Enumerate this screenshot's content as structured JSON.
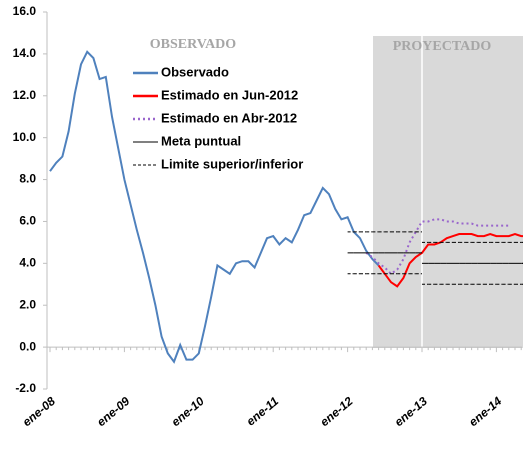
{
  "chart_data": {
    "type": "line",
    "annotations": [
      "OBSERVADO",
      "PROYECTADO"
    ],
    "categories": [
      "ene-08",
      null,
      null,
      null,
      null,
      null,
      null,
      null,
      null,
      null,
      null,
      null,
      "ene-09",
      null,
      null,
      null,
      null,
      null,
      null,
      null,
      null,
      null,
      null,
      null,
      "ene-10",
      null,
      null,
      null,
      null,
      null,
      null,
      null,
      null,
      null,
      null,
      null,
      "ene-11",
      null,
      null,
      null,
      null,
      null,
      null,
      null,
      null,
      null,
      null,
      null,
      "ene-12",
      null,
      null,
      null,
      null,
      null,
      null,
      null,
      null,
      null,
      null,
      null,
      "ene-13",
      null,
      null,
      null,
      null,
      null,
      null,
      null,
      null,
      null,
      null,
      null,
      "ene-14",
      null,
      null,
      null,
      null,
      null
    ],
    "ylim": [
      -2,
      16
    ],
    "yticks": [
      {
        "value": -2,
        "label": "-2.0"
      },
      {
        "value": 0,
        "label": "0.0"
      },
      {
        "value": 2,
        "label": "2.0"
      },
      {
        "value": 4,
        "label": "4.0"
      },
      {
        "value": 6,
        "label": "6.0"
      },
      {
        "value": 8,
        "label": "8.0"
      },
      {
        "value": 10,
        "label": "10.0"
      },
      {
        "value": 12,
        "label": "12.0"
      },
      {
        "value": 14,
        "label": "14.0"
      },
      {
        "value": 16,
        "label": "16.0"
      }
    ],
    "series": [
      {
        "name": "Observado",
        "color": "#4f81bd",
        "style": "solid",
        "values": [
          8.4,
          8.8,
          9.1,
          10.3,
          12.1,
          13.5,
          14.1,
          13.8,
          12.8,
          12.9,
          11.0,
          9.5,
          8.0,
          6.8,
          5.6,
          4.5,
          3.3,
          2.0,
          0.5,
          -0.3,
          -0.7,
          0.1,
          -0.6,
          -0.6,
          -0.3,
          1.0,
          2.4,
          3.9,
          3.7,
          3.5,
          4.0,
          4.1,
          4.1,
          3.8,
          4.5,
          5.2,
          5.3,
          4.9,
          5.2,
          5.0,
          5.6,
          6.3,
          6.4,
          7.0,
          7.6,
          7.3,
          6.6,
          6.1,
          6.2,
          5.5,
          5.2,
          4.6,
          4.2,
          3.9,
          null,
          null,
          null,
          null,
          null,
          null,
          null,
          null,
          null,
          null,
          null,
          null,
          null,
          null,
          null,
          null,
          null,
          null,
          null,
          null,
          null,
          null,
          null,
          null
        ]
      },
      {
        "name": "Estimado en Jun-2012",
        "color": "#ff0000",
        "style": "solid",
        "values": [
          null,
          null,
          null,
          null,
          null,
          null,
          null,
          null,
          null,
          null,
          null,
          null,
          null,
          null,
          null,
          null,
          null,
          null,
          null,
          null,
          null,
          null,
          null,
          null,
          null,
          null,
          null,
          null,
          null,
          null,
          null,
          null,
          null,
          null,
          null,
          null,
          null,
          null,
          null,
          null,
          null,
          null,
          null,
          null,
          null,
          null,
          null,
          null,
          null,
          null,
          null,
          null,
          null,
          3.9,
          3.5,
          3.1,
          2.9,
          3.3,
          4.0,
          4.3,
          4.5,
          4.9,
          4.9,
          5.0,
          5.2,
          5.3,
          5.4,
          5.4,
          5.4,
          5.3,
          5.3,
          5.4,
          5.3,
          5.3,
          5.3,
          5.4,
          5.3,
          5.3
        ]
      },
      {
        "name": "Estimado en Abr-2012",
        "color": "#9966cc",
        "style": "dotted",
        "values": [
          null,
          null,
          null,
          null,
          null,
          null,
          null,
          null,
          null,
          null,
          null,
          null,
          null,
          null,
          null,
          null,
          null,
          null,
          null,
          null,
          null,
          null,
          null,
          null,
          null,
          null,
          null,
          null,
          null,
          null,
          null,
          null,
          null,
          null,
          null,
          null,
          null,
          null,
          null,
          null,
          null,
          null,
          null,
          null,
          null,
          null,
          null,
          null,
          null,
          null,
          null,
          4.5,
          4.3,
          4.0,
          3.8,
          3.5,
          3.7,
          4.2,
          5.0,
          5.5,
          6.0,
          6.0,
          6.1,
          6.1,
          6.0,
          6.0,
          5.9,
          5.9,
          5.9,
          5.8,
          5.8,
          5.8,
          5.8,
          5.8,
          5.8,
          null,
          null,
          null
        ]
      },
      {
        "name": "Meta puntual",
        "color": "#000000",
        "style": "step",
        "values": [
          null,
          null,
          null,
          null,
          null,
          null,
          null,
          null,
          null,
          null,
          null,
          null,
          null,
          null,
          null,
          null,
          null,
          null,
          null,
          null,
          null,
          null,
          null,
          null,
          null,
          null,
          null,
          null,
          null,
          null,
          null,
          null,
          null,
          null,
          null,
          null,
          null,
          null,
          null,
          null,
          null,
          null,
          null,
          null,
          null,
          null,
          null,
          null,
          4.5,
          4.5,
          4.5,
          4.5,
          4.5,
          4.5,
          4.5,
          4.5,
          4.5,
          4.5,
          4.5,
          4.5,
          4.0,
          4.0,
          4.0,
          4.0,
          4.0,
          4.0,
          4.0,
          4.0,
          4.0,
          4.0,
          4.0,
          4.0,
          4.0,
          4.0,
          4.0,
          4.0,
          4.0,
          4.0
        ]
      },
      {
        "name": "Limite superior/inferior",
        "color": "#000000",
        "style": "dashed-step",
        "values": [
          null,
          null,
          null,
          null,
          null,
          null,
          null,
          null,
          null,
          null,
          null,
          null,
          null,
          null,
          null,
          null,
          null,
          null,
          null,
          null,
          null,
          null,
          null,
          null,
          null,
          null,
          null,
          null,
          null,
          null,
          null,
          null,
          null,
          null,
          null,
          null,
          null,
          null,
          null,
          null,
          null,
          null,
          null,
          null,
          null,
          null,
          null,
          null,
          5.5,
          5.5,
          5.5,
          5.5,
          5.5,
          5.5,
          5.5,
          5.5,
          5.5,
          5.5,
          5.5,
          5.5,
          5.0,
          5.0,
          5.0,
          5.0,
          5.0,
          5.0,
          5.0,
          5.0,
          5.0,
          5.0,
          5.0,
          5.0,
          5.0,
          5.0,
          5.0,
          5.0,
          5.0,
          5.0
        ],
        "lower_values": [
          null,
          null,
          null,
          null,
          null,
          null,
          null,
          null,
          null,
          null,
          null,
          null,
          null,
          null,
          null,
          null,
          null,
          null,
          null,
          null,
          null,
          null,
          null,
          null,
          null,
          null,
          null,
          null,
          null,
          null,
          null,
          null,
          null,
          null,
          null,
          null,
          null,
          null,
          null,
          null,
          null,
          null,
          null,
          null,
          null,
          null,
          null,
          null,
          3.5,
          3.5,
          3.5,
          3.5,
          3.5,
          3.5,
          3.5,
          3.5,
          3.5,
          3.5,
          3.5,
          3.5,
          3.0,
          3.0,
          3.0,
          3.0,
          3.0,
          3.0,
          3.0,
          3.0,
          3.0,
          3.0,
          3.0,
          3.0,
          3.0,
          3.0,
          3.0,
          3.0,
          3.0,
          3.0
        ]
      }
    ]
  }
}
